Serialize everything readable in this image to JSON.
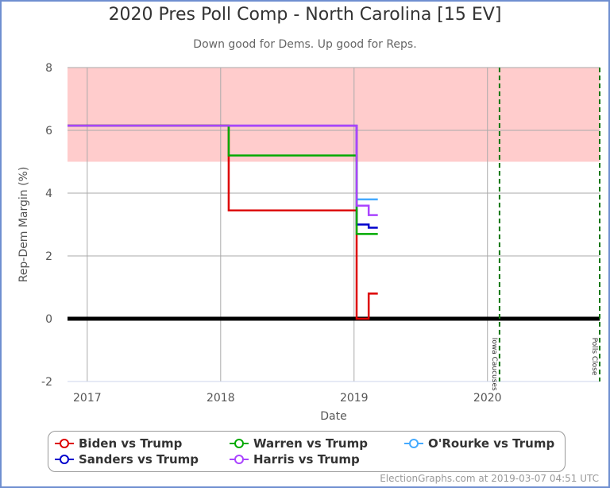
{
  "title": "2020 Pres Poll Comp - North Carolina [15 EV]",
  "subtitle": "Down good for Dems. Up good for Reps.",
  "footer": "ElectionGraphs.com at 2019-03-07 04:51 UTC",
  "chart_data": {
    "type": "line",
    "step": true,
    "xlabel": "Date",
    "ylabel": "Rep-Dem Margin (%)",
    "xlim": [
      "2016-11-08",
      "2020-11-03"
    ],
    "ylim": [
      -2,
      8
    ],
    "yticks": [
      -2,
      0,
      2,
      4,
      6,
      8
    ],
    "xticks": [
      {
        "date": "2017-01-01",
        "label": "2017"
      },
      {
        "date": "2018-01-01",
        "label": "2018"
      },
      {
        "date": "2019-01-01",
        "label": "2019"
      },
      {
        "date": "2020-01-01",
        "label": "2020"
      }
    ],
    "grid": true,
    "shaded_band": {
      "from": 5,
      "to": 8,
      "color": "#ffcccc"
    },
    "zero_line": 0,
    "events": [
      {
        "date": "2020-02-03",
        "label": "Iowa Caucuses",
        "color": "#117711"
      },
      {
        "date": "2020-11-03",
        "label": "Polls Close",
        "color": "#117711"
      }
    ],
    "legend_position": "bottom",
    "series": [
      {
        "name": "Biden vs Trump",
        "color": "#dd0000",
        "points": [
          [
            "2016-11-08",
            6.15
          ],
          [
            "2018-01-23",
            3.45
          ],
          [
            "2019-01-08",
            0
          ],
          [
            "2019-02-10",
            0.8
          ],
          [
            "2019-03-07",
            0.8
          ]
        ]
      },
      {
        "name": "Sanders vs Trump",
        "color": "#0000cc",
        "points": [
          [
            "2016-11-08",
            6.15
          ],
          [
            "2019-01-08",
            3.0
          ],
          [
            "2019-02-10",
            2.9
          ],
          [
            "2019-03-07",
            2.9
          ]
        ]
      },
      {
        "name": "O'Rourke vs Trump",
        "color": "#44aaff",
        "points": [
          [
            "2019-01-08",
            3.8
          ],
          [
            "2019-03-07",
            3.8
          ]
        ]
      },
      {
        "name": "Warren vs Trump",
        "color": "#00aa00",
        "points": [
          [
            "2016-11-08",
            6.15
          ],
          [
            "2018-01-23",
            5.2
          ],
          [
            "2019-01-08",
            2.7
          ],
          [
            "2019-03-07",
            2.7
          ]
        ]
      },
      {
        "name": "Harris vs Trump",
        "color": "#aa44ff",
        "points": [
          [
            "2016-11-08",
            6.15
          ],
          [
            "2019-01-08",
            3.6
          ],
          [
            "2019-02-10",
            3.3
          ],
          [
            "2019-03-07",
            3.3
          ]
        ]
      }
    ]
  },
  "legend": [
    {
      "label": "Biden vs Trump",
      "color": "#dd0000"
    },
    {
      "label": "Warren vs Trump",
      "color": "#00aa00"
    },
    {
      "label": "O'Rourke vs Trump",
      "color": "#44aaff"
    },
    {
      "label": "Sanders vs Trump",
      "color": "#0000cc"
    },
    {
      "label": "Harris vs Trump",
      "color": "#aa44ff"
    }
  ]
}
